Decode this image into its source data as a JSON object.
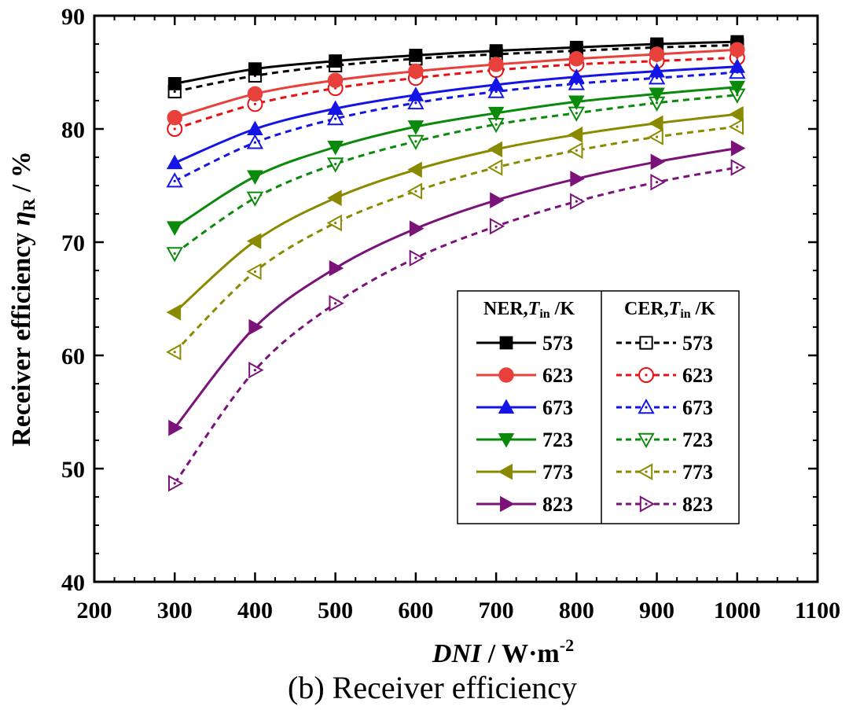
{
  "chart_data": {
    "type": "line",
    "caption": "(b) Receiver efficiency",
    "xlabel": {
      "main": "DNI",
      "unit": " / W·m",
      "sup": "-2"
    },
    "ylabel": {
      "prefix": "Receiver efficiency ",
      "symbol": "η",
      "sub": "R",
      "suffix": " / %"
    },
    "xlim": [
      200,
      1100
    ],
    "ylim": [
      40,
      90
    ],
    "xticks": [
      200,
      300,
      400,
      500,
      600,
      700,
      800,
      900,
      1000,
      1100
    ],
    "yticks": [
      40,
      50,
      60,
      70,
      80,
      90
    ],
    "x": [
      300,
      400,
      500,
      600,
      700,
      800,
      900,
      1000
    ],
    "legend": {
      "placement": "lower-right",
      "ner_header": {
        "prefix": "NER,",
        "symbol": "T",
        "sub": "in",
        "suffix": " /K"
      },
      "cer_header": {
        "prefix": "CER,",
        "symbol": "T",
        "sub": "in",
        "suffix": " /K"
      }
    },
    "series": [
      {
        "group": "NER",
        "name": "573",
        "color": "#000000",
        "marker": "square",
        "filled": true,
        "dashed": false,
        "values": [
          84.0,
          85.3,
          86.0,
          86.5,
          86.9,
          87.2,
          87.5,
          87.7
        ]
      },
      {
        "group": "NER",
        "name": "623",
        "color": "#e8403a",
        "marker": "circle",
        "filled": true,
        "dashed": false,
        "values": [
          81.0,
          83.1,
          84.3,
          85.1,
          85.7,
          86.2,
          86.6,
          87.0
        ]
      },
      {
        "group": "NER",
        "name": "673",
        "color": "#1414e6",
        "marker": "triangle-up",
        "filled": true,
        "dashed": false,
        "values": [
          77.0,
          80.0,
          81.8,
          83.0,
          83.9,
          84.6,
          85.1,
          85.5
        ]
      },
      {
        "group": "NER",
        "name": "723",
        "color": "#0a8a0a",
        "marker": "triangle-down",
        "filled": true,
        "dashed": false,
        "values": [
          71.3,
          75.8,
          78.4,
          80.2,
          81.4,
          82.4,
          83.1,
          83.7
        ]
      },
      {
        "group": "NER",
        "name": "773",
        "color": "#8a8a00",
        "marker": "triangle-left",
        "filled": true,
        "dashed": false,
        "values": [
          63.8,
          70.1,
          73.9,
          76.4,
          78.2,
          79.5,
          80.5,
          81.3
        ]
      },
      {
        "group": "NER",
        "name": "823",
        "color": "#7a127a",
        "marker": "triangle-right",
        "filled": true,
        "dashed": false,
        "values": [
          53.6,
          62.5,
          67.7,
          71.2,
          73.7,
          75.6,
          77.1,
          78.3
        ]
      },
      {
        "group": "CER",
        "name": "573",
        "color": "#000000",
        "marker": "square",
        "filled": false,
        "dashed": true,
        "values": [
          83.3,
          84.7,
          85.6,
          86.2,
          86.6,
          86.9,
          87.2,
          87.4
        ]
      },
      {
        "group": "CER",
        "name": "623",
        "color": "#e81010",
        "marker": "circle",
        "filled": false,
        "dashed": true,
        "values": [
          80.0,
          82.2,
          83.6,
          84.5,
          85.2,
          85.7,
          86.0,
          86.3
        ]
      },
      {
        "group": "CER",
        "name": "673",
        "color": "#1414e6",
        "marker": "triangle-up",
        "filled": false,
        "dashed": true,
        "values": [
          75.4,
          78.8,
          80.9,
          82.3,
          83.3,
          84.0,
          84.5,
          85.0
        ]
      },
      {
        "group": "CER",
        "name": "723",
        "color": "#0a8a0a",
        "marker": "triangle-down",
        "filled": false,
        "dashed": true,
        "values": [
          69.0,
          73.9,
          76.9,
          78.9,
          80.4,
          81.4,
          82.3,
          83.0
        ]
      },
      {
        "group": "CER",
        "name": "773",
        "color": "#8a8a00",
        "marker": "triangle-left",
        "filled": false,
        "dashed": true,
        "values": [
          60.3,
          67.4,
          71.7,
          74.5,
          76.6,
          78.1,
          79.3,
          80.2
        ]
      },
      {
        "group": "CER",
        "name": "823",
        "color": "#7a127a",
        "marker": "triangle-right",
        "filled": false,
        "dashed": true,
        "values": [
          48.7,
          58.7,
          64.6,
          68.6,
          71.4,
          73.6,
          75.3,
          76.6
        ]
      }
    ]
  }
}
